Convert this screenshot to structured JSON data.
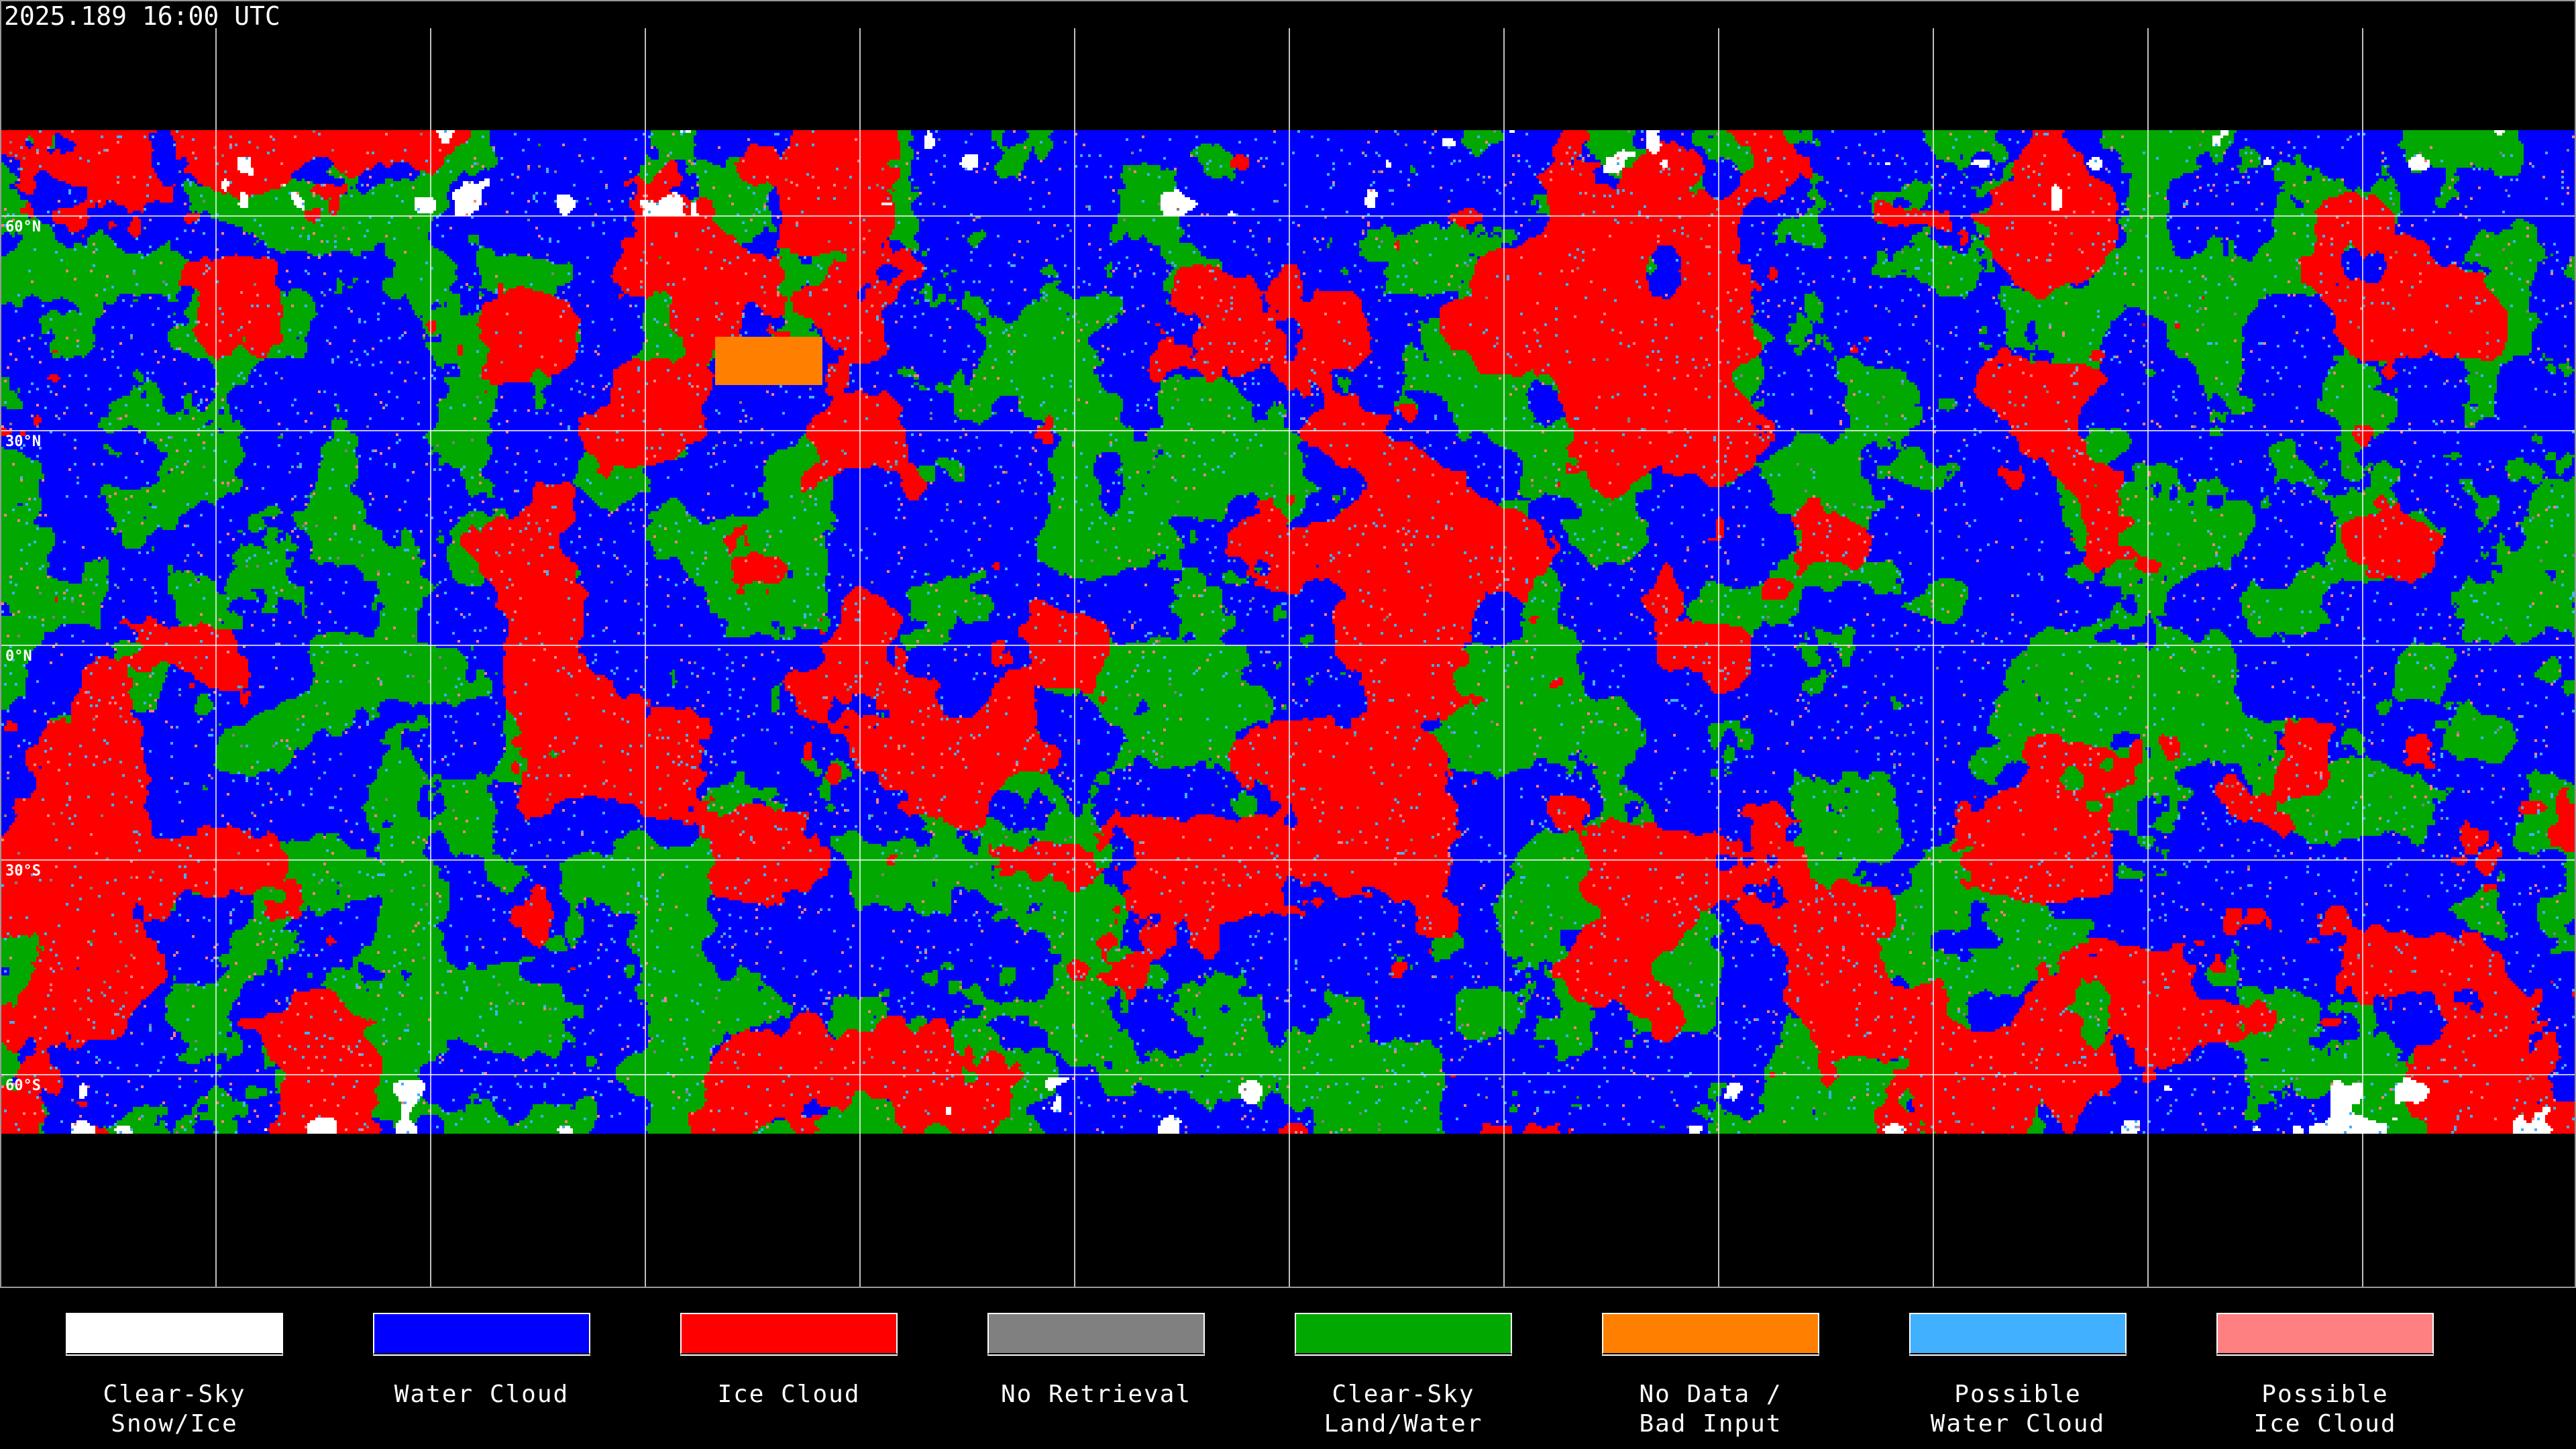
{
  "title": "2025.189 16:00 UTC",
  "lat_labels": [
    "60°N",
    "30°N",
    "0°N",
    "30°S",
    "60°S"
  ],
  "legend": [
    {
      "line1": "Clear-Sky",
      "line2": "Snow/Ice",
      "color": "#ffffff"
    },
    {
      "line1": "Water Cloud",
      "line2": "",
      "color": "#0000ff"
    },
    {
      "line1": "Ice Cloud",
      "line2": "",
      "color": "#ff0000"
    },
    {
      "line1": "No Retrieval",
      "line2": "",
      "color": "#808080"
    },
    {
      "line1": "Clear-Sky",
      "line2": "Land/Water",
      "color": "#00a800"
    },
    {
      "line1": "No Data /",
      "line2": "Bad Input",
      "color": "#ff8000"
    },
    {
      "line1": "Possible",
      "line2": "Water Cloud",
      "color": "#40b0ff"
    },
    {
      "line1": "Possible",
      "line2": "Ice Cloud",
      "color": "#ff8080"
    }
  ]
}
